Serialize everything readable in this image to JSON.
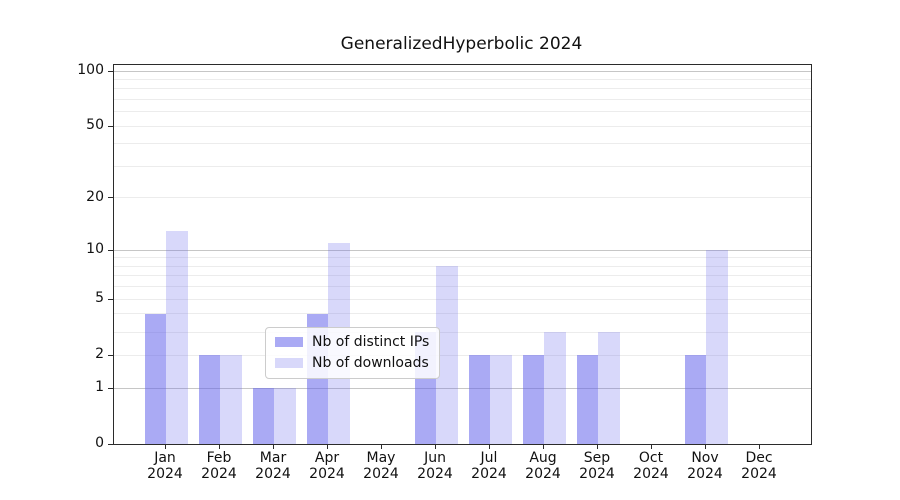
{
  "chart_data": {
    "type": "bar",
    "title": "GeneralizedHyperbolic 2024",
    "year_label": "2024",
    "categories": [
      "Jan",
      "Feb",
      "Mar",
      "Apr",
      "May",
      "Jun",
      "Jul",
      "Aug",
      "Sep",
      "Oct",
      "Nov",
      "Dec"
    ],
    "series": [
      {
        "name": "Nb of distinct IPs",
        "color": "rgba(100,100,235,0.55)",
        "values": [
          4,
          2,
          1,
          4,
          0,
          3,
          2,
          2,
          2,
          0,
          2,
          0
        ]
      },
      {
        "name": "Nb of downloads",
        "color": "rgba(100,100,235,0.25)",
        "values": [
          13,
          2,
          1,
          11,
          0,
          8,
          2,
          3,
          3,
          0,
          10,
          0
        ]
      }
    ],
    "yscale": "log1p",
    "ylim": [
      0,
      108
    ],
    "ytick_values": [
      0,
      1,
      2,
      5,
      10,
      20,
      50,
      100
    ],
    "ytick_labels": [
      "0",
      "1",
      "2",
      "5",
      "10",
      "20",
      "50",
      "100"
    ],
    "major_grid_values": [
      1,
      10,
      100
    ],
    "minor_grid_values": [
      2,
      3,
      4,
      5,
      6,
      7,
      8,
      9,
      20,
      30,
      40,
      50,
      60,
      70,
      80,
      90
    ],
    "grid": true,
    "legend_position": "lower-center",
    "colors": {
      "spine": "#2b2b2b",
      "major_grid": "#c6c6c6",
      "minor_grid": "#ececec",
      "legend_border": "#cccccc"
    }
  }
}
